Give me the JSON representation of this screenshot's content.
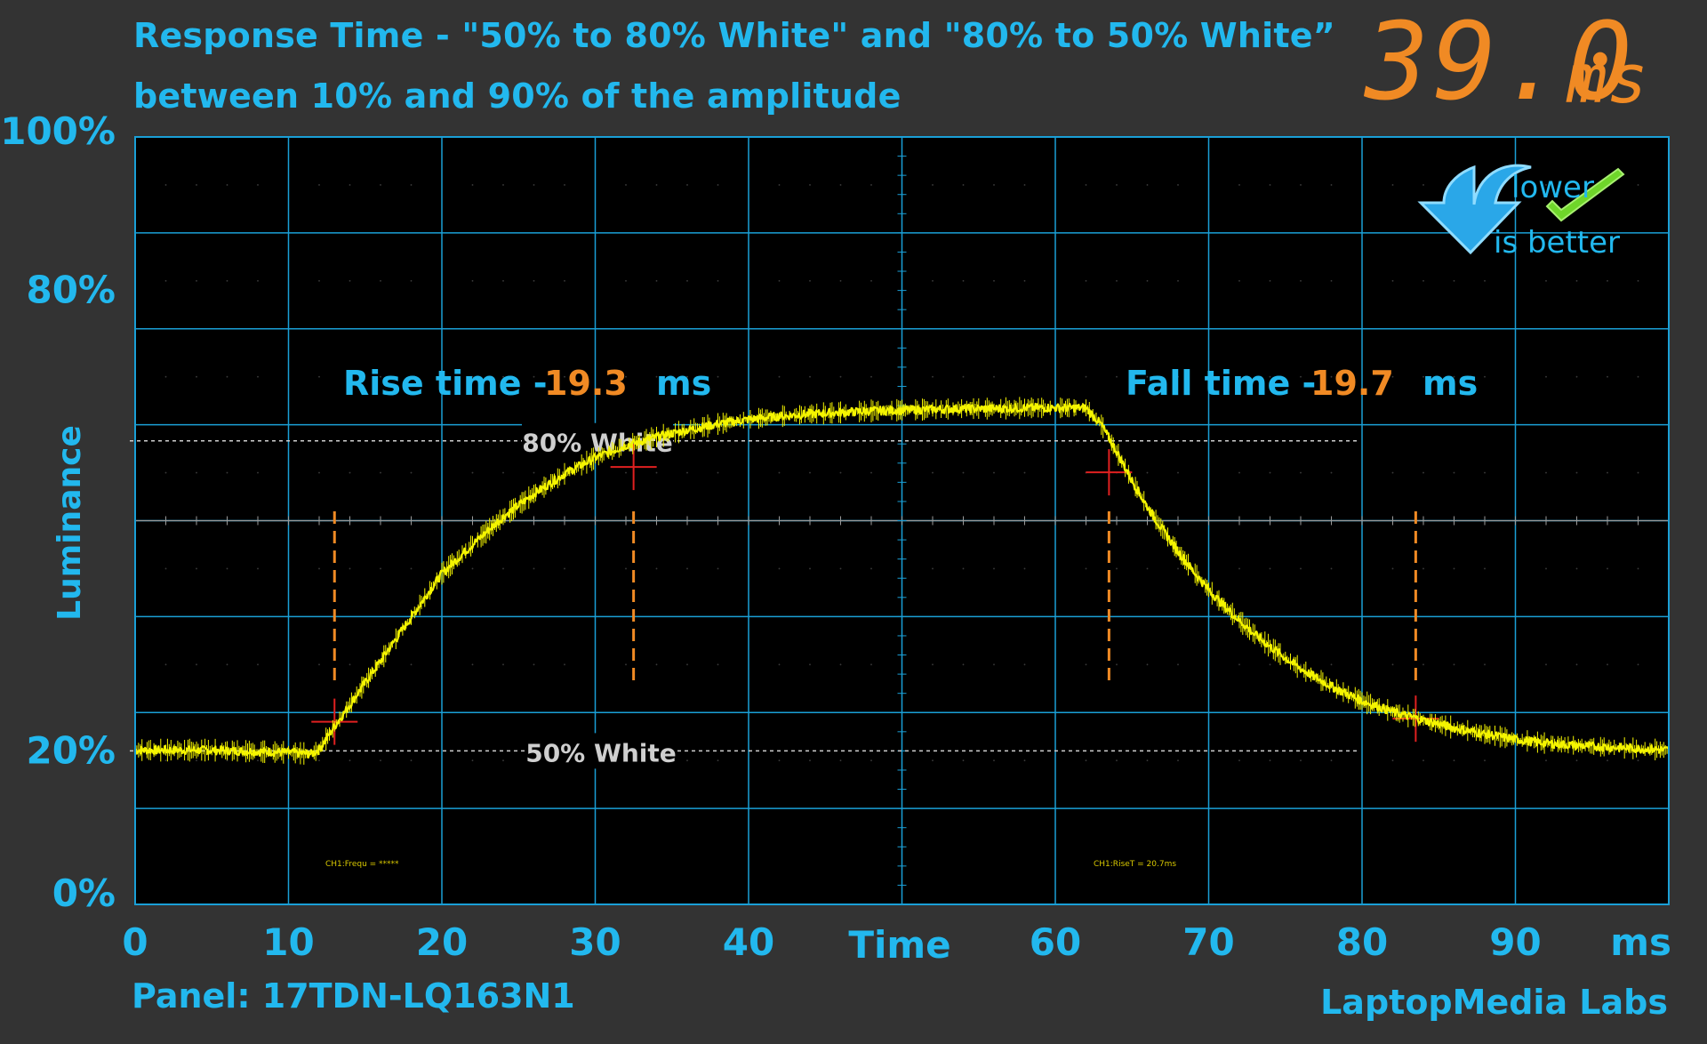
{
  "header": {
    "title_line1": "Response Time - \"50% to 80% White\" and \"80% to 50% White”",
    "title_line2": "between 10% and 90% of the amplitude",
    "total_value": "39.0",
    "total_unit": "ms"
  },
  "badge": {
    "line1": "lower",
    "line2": "is better",
    "arrow_icon": "blue-down-arrow-icon",
    "check_icon": "green-checkmark-icon"
  },
  "footer": {
    "panel": "Panel: 17TDN-LQ163N1",
    "brand": "LaptopMedia Labs"
  },
  "colors": {
    "accent": "#22b8ee",
    "value": "#f08a24",
    "trace": "#f5f500",
    "grid": "#1a9fd6",
    "marker": "#e02020",
    "reference": "#cfcfcf"
  },
  "chart_data": {
    "type": "line",
    "title": "Response Time - \"50% to 80% White\" and \"80% to 50% White”",
    "subtitle": "between 10% and 90% of the amplitude",
    "xlabel": "Time",
    "xunit": "ms",
    "ylabel": "Luminance",
    "xlim": [
      0,
      100
    ],
    "ylim": [
      0,
      100
    ],
    "x_ticks": [
      "0",
      "10",
      "20",
      "30",
      "40",
      "60",
      "70",
      "80",
      "90"
    ],
    "x_tick_values": [
      0,
      10,
      20,
      30,
      40,
      60,
      70,
      80,
      90
    ],
    "y_ticks": [
      "100%",
      "80%",
      "20%",
      "0%"
    ],
    "y_tick_values": [
      100,
      80,
      20,
      0
    ],
    "grid": true,
    "series": [
      {
        "x": [
          0,
          5,
          10,
          11.5,
          12,
          13,
          14,
          15,
          16,
          17,
          18,
          19,
          20,
          22,
          24,
          26,
          28,
          30,
          32,
          34,
          36,
          38,
          40,
          42,
          44,
          46,
          48,
          50,
          52,
          54,
          56,
          58,
          60,
          62,
          63,
          64,
          65,
          66,
          67,
          68,
          69,
          70,
          71,
          72,
          73,
          74,
          75,
          76,
          78,
          80,
          82,
          84,
          86,
          88,
          90,
          92,
          94,
          96,
          98,
          100
        ],
        "y": [
          20.1,
          20.1,
          19.8,
          19.6,
          20.2,
          23.2,
          26.0,
          28.9,
          31.7,
          34.6,
          37.4,
          40.3,
          43.1,
          46.9,
          50.5,
          53.5,
          56.1,
          58.2,
          59.8,
          60.9,
          61.8,
          62.6,
          63.2,
          63.6,
          63.9,
          64.1,
          64.3,
          64.4,
          64.5,
          64.6,
          64.6,
          64.7,
          64.7,
          64.7,
          62.5,
          59.0,
          55.2,
          51.8,
          48.8,
          46.0,
          43.4,
          41.0,
          38.9,
          37.0,
          35.2,
          33.6,
          32.1,
          30.7,
          28.4,
          26.5,
          25.1,
          24.0,
          23.0,
          22.2,
          21.5,
          21.0,
          20.7,
          20.5,
          20.3,
          20.1
        ]
      }
    ],
    "reference_lines": [
      {
        "label": "80% White",
        "y": 60.4
      },
      {
        "label": "50% White",
        "y": 20.0
      }
    ],
    "markers": [
      {
        "x": 13.0,
        "y": 23.8
      },
      {
        "x": 32.5,
        "y": 57.0
      },
      {
        "x": 63.5,
        "y": 56.3
      },
      {
        "x": 83.5,
        "y": 24.2
      }
    ],
    "annotations": {
      "rise_label": "Rise time -",
      "rise_value": "19.3",
      "rise_unit": "ms",
      "fall_label": "Fall time -",
      "fall_value": "19.7",
      "fall_unit": "ms",
      "ch1_left": "CH1:Frequ = *****",
      "ch1_right": "CH1:RiseT = 20.7ms"
    }
  }
}
